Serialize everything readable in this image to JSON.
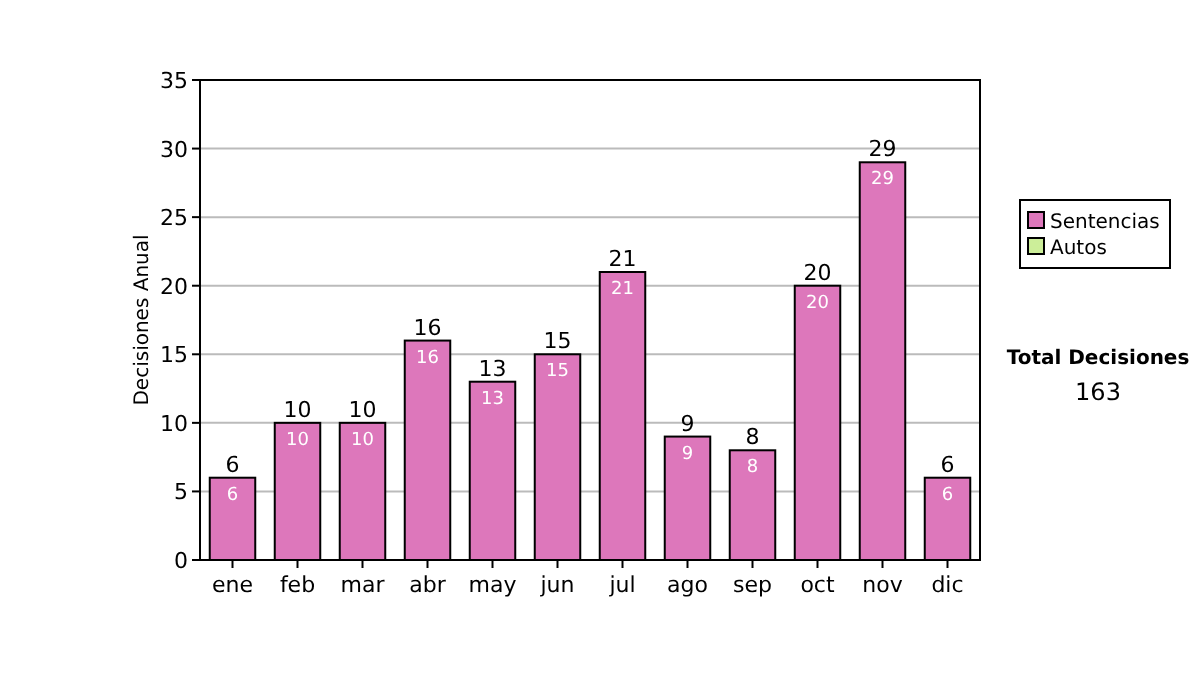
{
  "chart_data": {
    "type": "bar",
    "ylabel": "Decisiones Anual",
    "categories": [
      "ene",
      "feb",
      "mar",
      "abr",
      "may",
      "jun",
      "jul",
      "ago",
      "sep",
      "oct",
      "nov",
      "dic"
    ],
    "series": [
      {
        "name": "Sentencias",
        "color": "#dd77bb",
        "values": [
          6,
          10,
          10,
          16,
          13,
          15,
          21,
          9,
          8,
          20,
          29,
          6
        ],
        "value_labels": [
          "6",
          "10",
          "10",
          "16",
          "13",
          "15",
          "21",
          "9",
          "8",
          "20",
          "29",
          "6"
        ]
      },
      {
        "name": "Autos",
        "color": "#ccee99",
        "values": [
          null,
          null,
          null,
          null,
          null,
          null,
          null,
          null,
          null,
          null,
          null,
          null
        ]
      }
    ],
    "ylim": [
      0,
      35
    ],
    "yticks": [
      0,
      5,
      10,
      15,
      20,
      25,
      30,
      35
    ],
    "grid": "y",
    "legend": "right",
    "annotations": [
      "Total Decisiones",
      "163",
      {
        "text": "6",
        "x": "ene",
        "y": 6
      },
      {
        "text": "10",
        "x": "feb",
        "y": 10
      },
      {
        "text": "10",
        "x": "mar",
        "y": 10
      },
      {
        "text": "16",
        "x": "abr",
        "y": 16
      },
      {
        "text": "13",
        "x": "may",
        "y": 13
      },
      {
        "text": "15",
        "x": "jun",
        "y": 15
      },
      {
        "text": "21",
        "x": "jul",
        "y": 21
      },
      {
        "text": "9",
        "x": "ago",
        "y": 9
      },
      {
        "text": "8",
        "x": "sep",
        "y": 8
      },
      {
        "text": "20",
        "x": "oct",
        "y": 20
      },
      {
        "text": "29",
        "x": "nov",
        "y": 29
      },
      {
        "text": "6",
        "x": "dic",
        "y": 6
      }
    ]
  }
}
